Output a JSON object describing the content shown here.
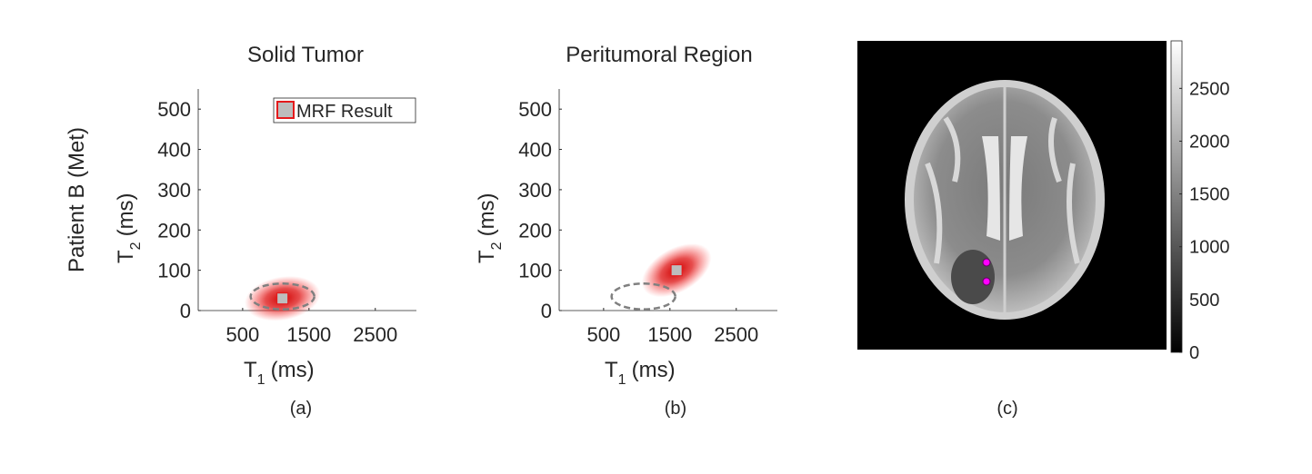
{
  "chart_data": [
    {
      "type": "scatter",
      "title": "Solid Tumor",
      "row_label": "Patient B (Met)",
      "xlabel": [
        "T",
        "1",
        "(ms)"
      ],
      "ylabel": [
        "T",
        "2",
        "(ms)"
      ],
      "caption": "(a)",
      "xlim": [
        -170,
        3120
      ],
      "xticks": [
        500,
        1500,
        2500
      ],
      "ylim": [
        0,
        550
      ],
      "yticks": [
        0,
        100,
        200,
        300,
        400,
        500
      ],
      "series": [
        {
          "name": "MRF Result",
          "color": "#e41a1c",
          "x": [
            1100
          ],
          "values": [
            30
          ]
        }
      ],
      "reference_ellipse": {
        "center": [
          1100,
          35
        ],
        "radii": [
          480,
          32
        ]
      },
      "legend": "upper right"
    },
    {
      "type": "scatter",
      "title": "Peritumoral Region",
      "xlabel": [
        "T",
        "1",
        "(ms)"
      ],
      "ylabel": [
        "T",
        "2",
        "(ms)"
      ],
      "caption": "(b)",
      "xlim": [
        -170,
        3120
      ],
      "xticks": [
        500,
        1500,
        2500
      ],
      "ylim": [
        0,
        550
      ],
      "yticks": [
        0,
        100,
        200,
        300,
        400,
        500
      ],
      "series": [
        {
          "x": [
            1600
          ],
          "values": [
            100
          ],
          "color": "#e41a1c"
        }
      ],
      "reference_ellipse": {
        "center": [
          1100,
          35
        ],
        "radii": [
          480,
          32
        ]
      }
    },
    {
      "type": "image",
      "caption": "(c)",
      "clim": [
        0,
        2950
      ],
      "cticks": [
        0,
        500,
        1000,
        1500,
        2000,
        2500
      ]
    }
  ]
}
